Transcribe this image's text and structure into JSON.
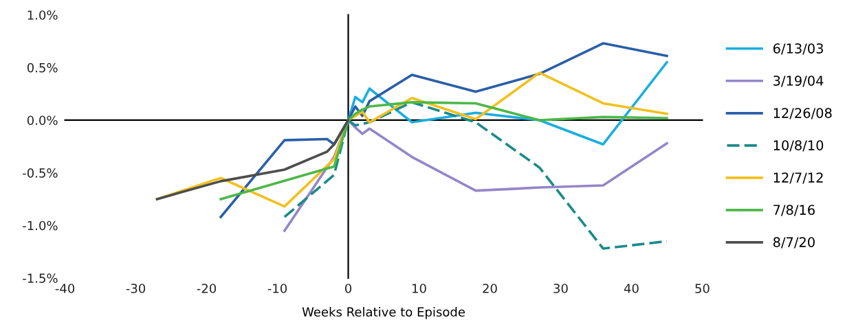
{
  "chart_data": {
    "type": "line",
    "xlabel": "Weeks Relative to Episode",
    "xlim": [
      -40,
      50
    ],
    "xticks": [
      -40,
      -30,
      -20,
      -10,
      0,
      10,
      20,
      30,
      40,
      50
    ],
    "ylim": [
      -1.5,
      1.0
    ],
    "yticks": [
      {
        "value": -1.5,
        "label": "-1.5%"
      },
      {
        "value": -1.0,
        "label": "-1.0%"
      },
      {
        "value": -0.5,
        "label": "-0.5%"
      },
      {
        "value": 0.0,
        "label": "0.0%"
      },
      {
        "value": 0.5,
        "label": "0.5%"
      },
      {
        "value": 1.0,
        "label": "1.0%"
      }
    ],
    "legend": "right",
    "marker": "none",
    "series": [
      {
        "name": "6/13/03",
        "color": "#1aaee0",
        "x": [
          0,
          1,
          2,
          3,
          9,
          18,
          27,
          36,
          45
        ],
        "values": [
          0,
          0.22,
          0.17,
          0.3,
          -0.02,
          0.07,
          0.0,
          -0.23,
          0.55
        ]
      },
      {
        "name": "3/19/04",
        "color": "#9486c9",
        "x": [
          -9,
          -2,
          0,
          1,
          2,
          3,
          9,
          18,
          27,
          36,
          45
        ],
        "values": [
          -1.05,
          -0.35,
          0,
          -0.07,
          -0.13,
          -0.08,
          -0.35,
          -0.67,
          -0.64,
          -0.62,
          -0.22
        ]
      },
      {
        "name": "12/26/08",
        "color": "#2a5ea8",
        "x": [
          -18,
          -9,
          -3,
          -2,
          0,
          1,
          2,
          3,
          9,
          18,
          27,
          36,
          45
        ],
        "values": [
          -0.92,
          -0.19,
          -0.18,
          -0.23,
          0,
          0.13,
          0.04,
          0.18,
          0.43,
          0.27,
          0.44,
          0.73,
          0.61
        ]
      },
      {
        "name": "10/8/10",
        "color": "#1a8a8a",
        "line_style": "dashed",
        "x": [
          -9,
          -2,
          0,
          1,
          3,
          9,
          18,
          27,
          36,
          45
        ],
        "values": [
          -0.92,
          -0.52,
          0,
          -0.05,
          -0.02,
          0.17,
          -0.02,
          -0.45,
          -1.22,
          -1.15
        ]
      },
      {
        "name": "12/7/12",
        "color": "#f2c01e",
        "x": [
          -27,
          -18,
          -9,
          -2,
          0,
          2,
          3,
          9,
          18,
          27,
          36,
          45
        ],
        "values": [
          -0.75,
          -0.55,
          -0.82,
          -0.37,
          0,
          0.08,
          -0.02,
          0.21,
          0.01,
          0.45,
          0.16,
          0.06
        ]
      },
      {
        "name": "7/8/16",
        "color": "#4cb848",
        "x": [
          -18,
          -2,
          0,
          1,
          2,
          3,
          9,
          18,
          27,
          36,
          45
        ],
        "values": [
          -0.75,
          -0.44,
          0,
          0.06,
          0.1,
          0.13,
          0.17,
          0.16,
          0.0,
          0.03,
          0.02
        ]
      },
      {
        "name": "8/7/20",
        "color": "#4d4d4d",
        "x": [
          -27,
          -18,
          -9,
          -3,
          -2,
          0
        ],
        "values": [
          -0.75,
          -0.58,
          -0.47,
          -0.3,
          -0.23,
          0
        ]
      }
    ]
  }
}
